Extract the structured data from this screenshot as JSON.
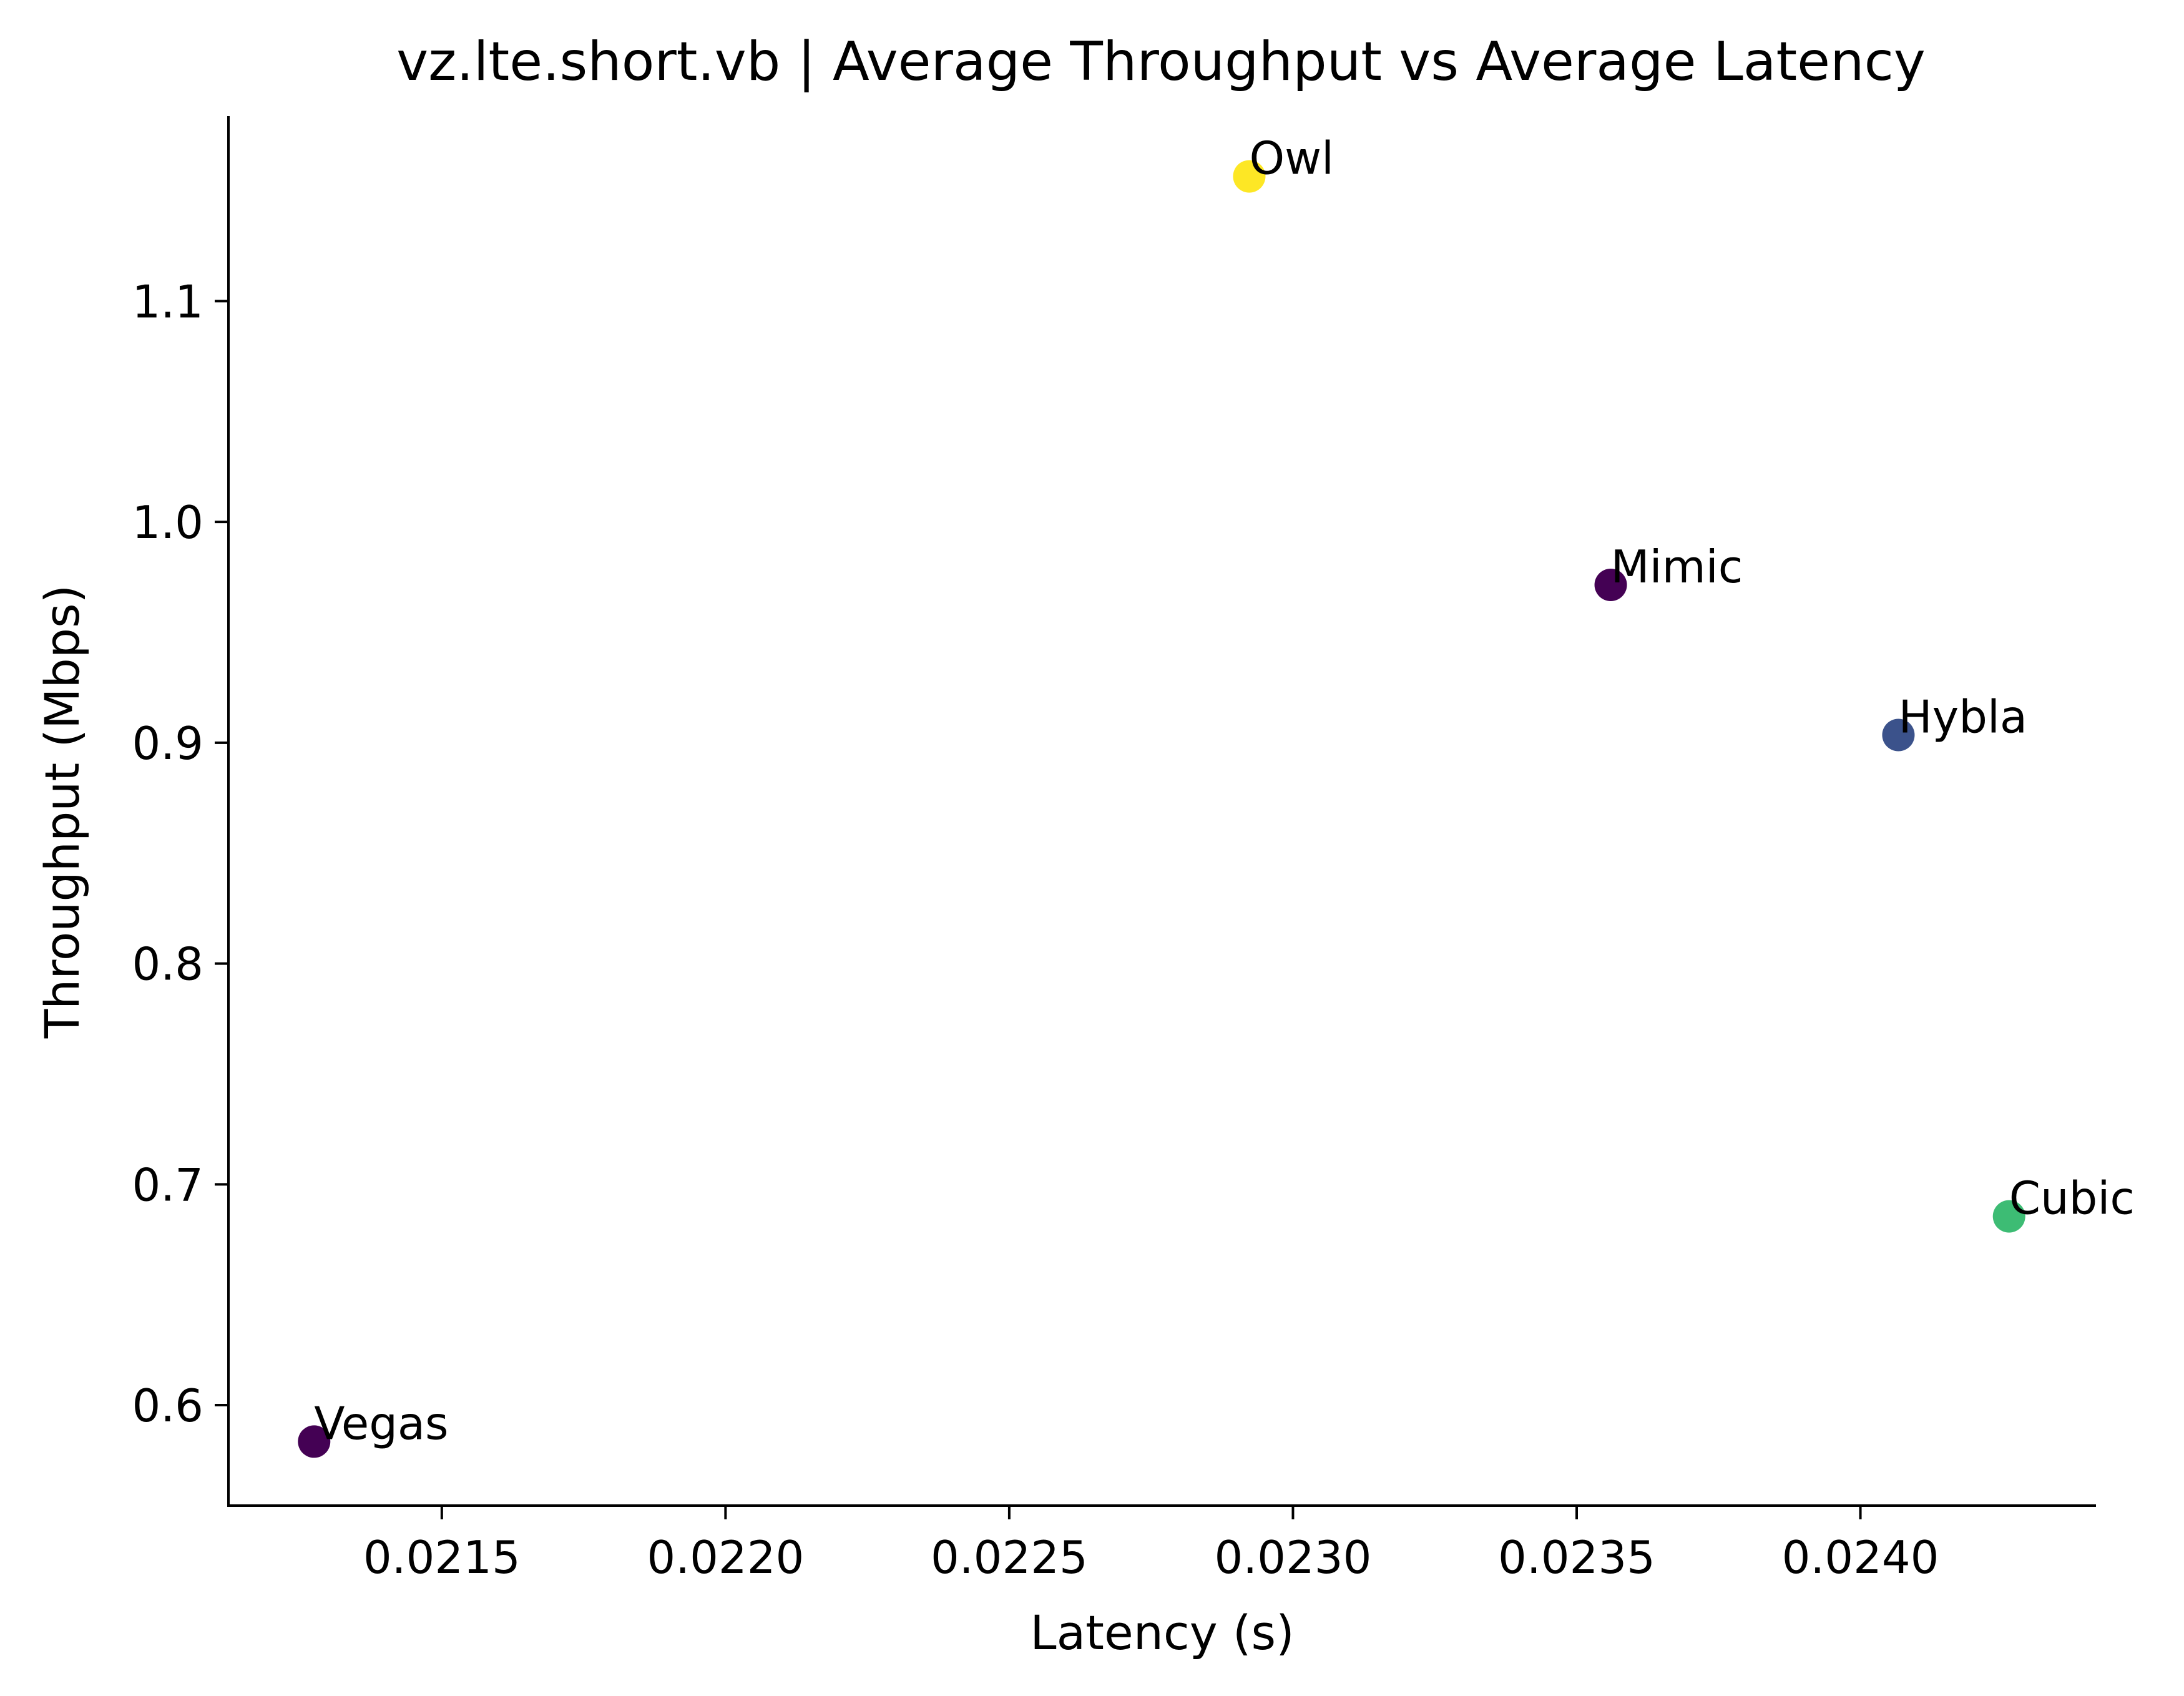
{
  "chart_data": {
    "type": "scatter",
    "title": "vz.lte.short.vb | Average Throughput vs Average Latency",
    "xlabel": "Latency (s)",
    "ylabel": "Throughput (Mbps)",
    "xlim": [
      0.021124,
      0.024413
    ],
    "ylim": [
      0.5545,
      1.1838
    ],
    "xticks": [
      0.0215,
      0.022,
      0.0225,
      0.023,
      0.0235,
      0.024
    ],
    "xtick_labels": [
      "0.0215",
      "0.0220",
      "0.0225",
      "0.0230",
      "0.0235",
      "0.0240"
    ],
    "yticks": [
      0.6,
      0.7,
      0.8,
      0.9,
      1.0,
      1.1
    ],
    "ytick_labels": [
      "0.6",
      "0.7",
      "0.8",
      "0.9",
      "1.0",
      "1.1"
    ],
    "grid": false,
    "points": [
      {
        "label": "Owl",
        "x": 0.022923,
        "y": 1.1565,
        "color": "#fde725"
      },
      {
        "label": "Mimic",
        "x": 0.02356,
        "y": 0.9715,
        "color": "#440154"
      },
      {
        "label": "Hybla",
        "x": 0.024067,
        "y": 0.9035,
        "color": "#3b528b"
      },
      {
        "label": "Cubic",
        "x": 0.024262,
        "y": 0.6855,
        "color": "#3dbc74"
      },
      {
        "label": "Vegas",
        "x": 0.021275,
        "y": 0.5835,
        "color": "#440154"
      }
    ]
  }
}
